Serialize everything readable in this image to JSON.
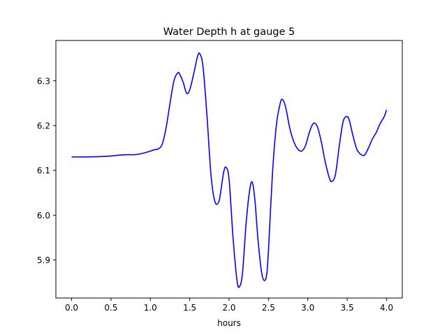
{
  "chart_data": {
    "type": "line",
    "title": "Water Depth h at gauge 5",
    "xlabel": "hours",
    "ylabel": "",
    "xlim": [
      -0.2,
      4.2
    ],
    "ylim": [
      5.815,
      6.39
    ],
    "x_ticks": [
      0.0,
      0.5,
      1.0,
      1.5,
      2.0,
      2.5,
      3.0,
      3.5,
      4.0
    ],
    "x_tick_labels": [
      "0.0",
      "0.5",
      "1.0",
      "1.5",
      "2.0",
      "2.5",
      "3.0",
      "3.5",
      "4.0"
    ],
    "y_ticks": [
      5.9,
      6.0,
      6.1,
      6.2,
      6.3
    ],
    "y_tick_labels": [
      "5.9",
      "6.0",
      "6.1",
      "6.2",
      "6.3"
    ],
    "grid": false,
    "series": [
      {
        "color": "#0000ff",
        "x": [
          0.0,
          0.2,
          0.4,
          0.5,
          0.6,
          0.7,
          0.8,
          0.9,
          1.0,
          1.05,
          1.1,
          1.15,
          1.2,
          1.25,
          1.3,
          1.35,
          1.38,
          1.42,
          1.46,
          1.5,
          1.55,
          1.6,
          1.63,
          1.67,
          1.72,
          1.77,
          1.82,
          1.87,
          1.9,
          1.93,
          1.96,
          2.0,
          2.05,
          2.1,
          2.13,
          2.17,
          2.22,
          2.27,
          2.3,
          2.33,
          2.37,
          2.42,
          2.47,
          2.5,
          2.55,
          2.6,
          2.65,
          2.68,
          2.72,
          2.77,
          2.82,
          2.87,
          2.92,
          2.97,
          3.02,
          3.07,
          3.12,
          3.17,
          3.22,
          3.27,
          3.3,
          3.35,
          3.4,
          3.45,
          3.5,
          3.53,
          3.57,
          3.62,
          3.67,
          3.72,
          3.77,
          3.82,
          3.87,
          3.92,
          3.97,
          4.0
        ],
        "y": [
          6.13,
          6.13,
          6.131,
          6.132,
          6.134,
          6.135,
          6.135,
          6.138,
          6.143,
          6.146,
          6.148,
          6.158,
          6.195,
          6.25,
          6.3,
          6.318,
          6.312,
          6.295,
          6.272,
          6.28,
          6.315,
          6.355,
          6.36,
          6.33,
          6.22,
          6.09,
          6.03,
          6.03,
          6.06,
          6.095,
          6.107,
          6.08,
          5.95,
          5.855,
          5.84,
          5.87,
          5.99,
          6.065,
          6.07,
          6.03,
          5.94,
          5.865,
          5.86,
          5.92,
          6.09,
          6.2,
          6.25,
          6.258,
          6.24,
          6.195,
          6.165,
          6.148,
          6.143,
          6.155,
          6.185,
          6.205,
          6.198,
          6.165,
          6.12,
          6.085,
          6.075,
          6.09,
          6.155,
          6.21,
          6.22,
          6.21,
          6.18,
          6.148,
          6.136,
          6.134,
          6.15,
          6.17,
          6.185,
          6.205,
          6.22,
          6.235
        ]
      }
    ]
  }
}
